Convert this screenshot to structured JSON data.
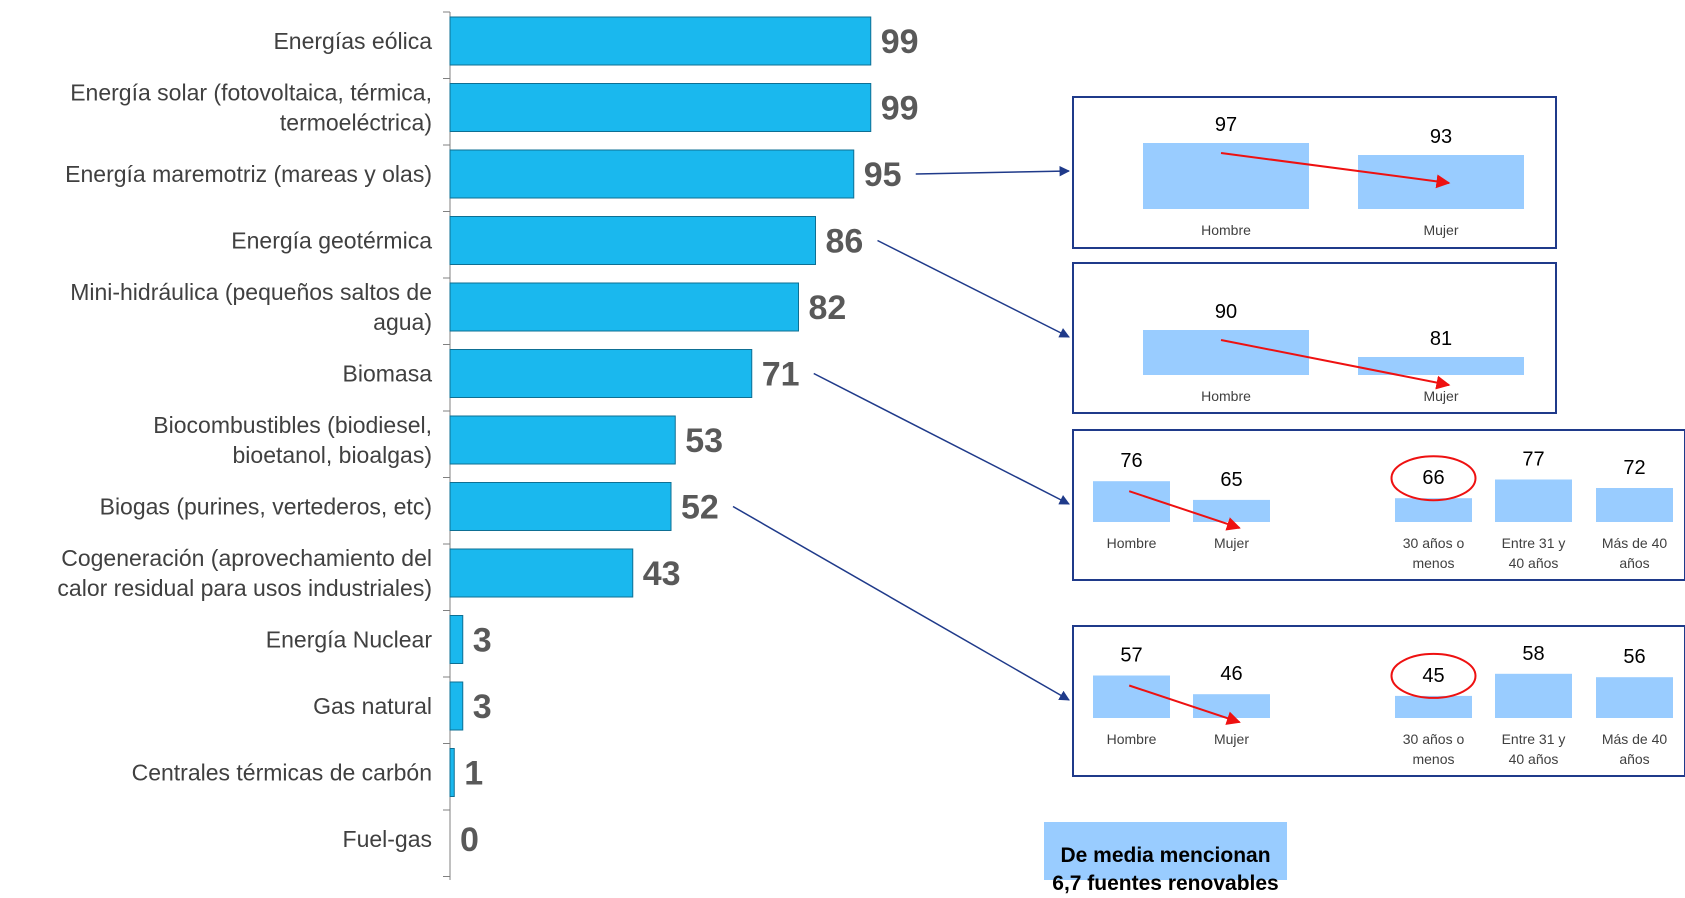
{
  "chart_data": [
    {
      "type": "bar",
      "orientation": "horizontal",
      "categories": [
        [
          "Energías eólica"
        ],
        [
          "Energía solar (fotovoltaica, térmica,",
          "termoeléctrica)"
        ],
        [
          "Energía maremotriz (mareas y olas)"
        ],
        [
          "Energía geotérmica"
        ],
        [
          "Mini-hidráulica (pequeños saltos de",
          "agua)"
        ],
        [
          "Biomasa"
        ],
        [
          "Biocombustibles (biodiesel,",
          "bioetanol, bioalgas)"
        ],
        [
          "Biogas (purines, vertederos, etc)"
        ],
        [
          "Cogeneración (aprovechamiento del",
          "calor residual para usos industriales)"
        ],
        [
          "Energía Nuclear"
        ],
        [
          "Gas natural"
        ],
        [
          "Centrales térmicas de carbón"
        ],
        [
          "Fuel-gas"
        ]
      ],
      "values": [
        99,
        99,
        95,
        86,
        82,
        71,
        53,
        52,
        43,
        3,
        3,
        1,
        0
      ],
      "xlim": [
        0,
        110
      ],
      "grid": false,
      "bar_color": "#1ab8ee",
      "bar_border_color": "#0e6f93",
      "label_color": "#595959"
    },
    {
      "type": "bar",
      "source_category": "Energía maremotriz (mareas y olas)",
      "categories": [
        "Hombre",
        "Mujer"
      ],
      "values": [
        97,
        93
      ]
    },
    {
      "type": "bar",
      "source_category": "Energía geotérmica",
      "categories": [
        "Hombre",
        "Mujer"
      ],
      "values": [
        90,
        81
      ]
    },
    {
      "type": "bar",
      "source_category": "Biomasa",
      "categories": [
        [
          "Hombre"
        ],
        [
          "Mujer"
        ],
        [
          "30 años o",
          "menos"
        ],
        [
          "Entre 31 y",
          "40 años"
        ],
        [
          "Más de 40",
          "años"
        ]
      ],
      "values": [
        76,
        65,
        66,
        77,
        72
      ],
      "highlighted": [
        2
      ]
    },
    {
      "type": "bar",
      "source_category": "Biogas (purines, vertederos, etc)",
      "categories": [
        [
          "Hombre"
        ],
        [
          "Mujer"
        ],
        [
          "30 años o",
          "menos"
        ],
        [
          "Entre 31 y",
          "40 años"
        ],
        [
          "Más de 40",
          "años"
        ]
      ],
      "values": [
        57,
        46,
        45,
        58,
        56
      ],
      "highlighted": [
        2
      ]
    }
  ],
  "colors": {
    "inset_bar": "#99ccff",
    "inset_border": "#1f3a8a",
    "connector": "#1f3a8a",
    "trend_arrow": "#ee1111",
    "highlight_circle": "#ee1111"
  },
  "note": "De media mencionan 6,7 fuentes renovables"
}
